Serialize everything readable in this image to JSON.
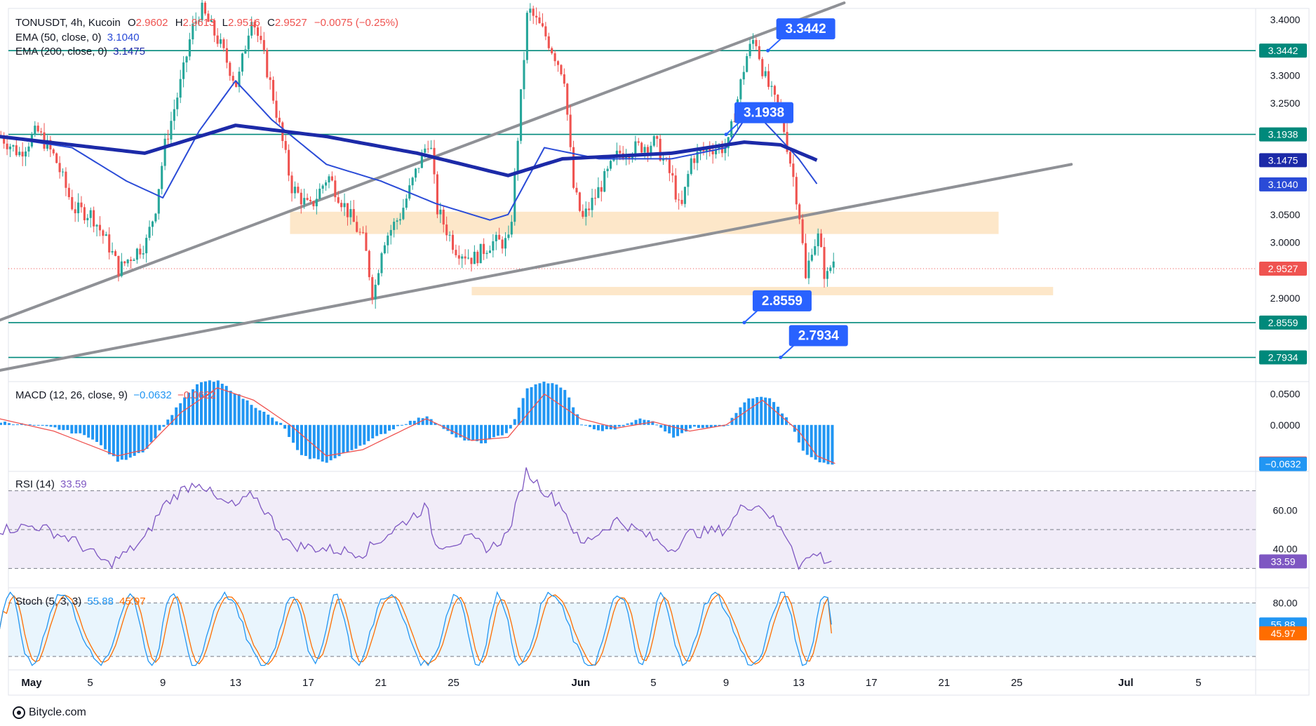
{
  "header": {
    "symbol_line": "TONUSDT, 4h, Kucoin",
    "ohlc": {
      "o_label": "O",
      "o": "2.9602",
      "h_label": "H",
      "h": "2.9613",
      "l_label": "L",
      "l": "2.9516",
      "c_label": "C",
      "c": "2.9527",
      "change": "−0.0075 (−0.25%)"
    },
    "ema50_label": "EMA (50, close, 0)",
    "ema50_value": "3.1040",
    "ema200_label": "EMA (200, close, 0)",
    "ema200_value": "3.1475"
  },
  "brand": "Bitycle.com",
  "colors": {
    "up": "#26a69a",
    "down": "#ef5350",
    "ema50": "#2a4bd7",
    "ema200": "#1c2aa8",
    "level": "#00897b",
    "callout": "#2962ff",
    "trend": "#8f9196",
    "zone": "#fde3c0",
    "macd_hist": "#2196f3",
    "signal": "#ef5350",
    "rsi": "#7e57c2",
    "stoch_k": "#2196f3",
    "stoch_d": "#ff6d00"
  },
  "chart_data": [
    {
      "type": "candlestick",
      "panel": "price",
      "title": "TONUSDT, 4h, Kucoin",
      "ylim": [
        2.75,
        3.42
      ],
      "yticks": [
        "3.4000",
        "3.3000",
        "3.2500",
        "3.0500",
        "3.0000",
        "2.9000"
      ],
      "x_ticks": [
        "May",
        "5",
        "9",
        "13",
        "17",
        "21",
        "25",
        "Jun",
        "5",
        "9",
        "13",
        "17",
        "21",
        "25",
        "Jul",
        "5"
      ],
      "x_tick_days": [
        1,
        5,
        9,
        13,
        17,
        21,
        25,
        32,
        36,
        40,
        44,
        48,
        52,
        56,
        62,
        66
      ],
      "last_price": 2.9527,
      "overlays": [
        {
          "name": "EMA (50, close, 0)",
          "value": "3.1040",
          "anchors": [
            [
              0,
              3.19
            ],
            [
              4,
              3.17
            ],
            [
              7,
              3.11
            ],
            [
              9,
              3.08
            ],
            [
              11,
              3.2
            ],
            [
              13,
              3.29
            ],
            [
              15,
              3.22
            ],
            [
              18,
              3.14
            ],
            [
              21,
              3.11
            ],
            [
              24,
              3.07
            ],
            [
              27,
              3.04
            ],
            [
              28,
              3.05
            ],
            [
              30,
              3.17
            ],
            [
              33,
              3.15
            ],
            [
              37,
              3.15
            ],
            [
              40,
              3.17
            ],
            [
              41,
              3.22
            ],
            [
              42,
              3.22
            ],
            [
              44,
              3.15
            ],
            [
              45,
              3.105
            ]
          ]
        },
        {
          "name": "EMA (200, close, 0)",
          "value": "3.1475",
          "anchors": [
            [
              0,
              3.19
            ],
            [
              8,
              3.16
            ],
            [
              13,
              3.21
            ],
            [
              18,
              3.19
            ],
            [
              23,
              3.16
            ],
            [
              28,
              3.12
            ],
            [
              31,
              3.15
            ],
            [
              37,
              3.16
            ],
            [
              41,
              3.18
            ],
            [
              43,
              3.175
            ],
            [
              45,
              3.1475
            ]
          ]
        }
      ],
      "levels": [
        {
          "label": "3.3442",
          "value": 3.3442
        },
        {
          "label": "3.1938",
          "value": 3.1938
        },
        {
          "label": "2.8559",
          "value": 2.8559
        },
        {
          "label": "2.7934",
          "value": 2.7934
        }
      ],
      "axis_labels": [
        {
          "text": "3.3442",
          "value": 3.3442,
          "color": "#00897b"
        },
        {
          "text": "3.1938",
          "value": 3.1938,
          "color": "#00897b"
        },
        {
          "text": "3.1475",
          "value": 3.1475,
          "color": "#1c2aa8"
        },
        {
          "text": "3.1040",
          "value": 3.104,
          "color": "#2a4bd7"
        },
        {
          "text": "2.9527",
          "value": 2.9527,
          "color": "#ef5350"
        },
        {
          "text": "2.8559",
          "value": 2.8559,
          "color": "#00897b"
        },
        {
          "text": "2.7934",
          "value": 2.7934,
          "color": "#00897b"
        }
      ],
      "trendlines": [
        {
          "from": [
            0,
            2.86
          ],
          "to": [
            46.5,
            3.43
          ]
        },
        {
          "from": [
            0,
            2.77
          ],
          "to": [
            59,
            3.14
          ]
        }
      ],
      "zones": [
        {
          "day_from": 16,
          "day_to": 55,
          "low": 3.015,
          "high": 3.055
        },
        {
          "day_from": 26,
          "day_to": 58,
          "low": 2.905,
          "high": 2.92
        }
      ],
      "candle_path": [
        [
          0,
          3.19
        ],
        [
          1,
          3.16
        ],
        [
          2,
          3.2
        ],
        [
          3,
          3.15
        ],
        [
          4,
          3.06
        ],
        [
          5,
          3.05
        ],
        [
          6,
          2.99
        ],
        [
          6.5,
          2.95
        ],
        [
          7,
          2.97
        ],
        [
          8,
          3.0
        ],
        [
          8.5,
          3.06
        ],
        [
          9,
          3.17
        ],
        [
          10,
          3.3
        ],
        [
          10.5,
          3.38
        ],
        [
          11,
          3.42
        ],
        [
          12,
          3.36
        ],
        [
          13,
          3.28
        ],
        [
          13.8,
          3.41
        ],
        [
          14.5,
          3.33
        ],
        [
          15,
          3.26
        ],
        [
          16,
          3.1
        ],
        [
          17,
          3.06
        ],
        [
          18,
          3.12
        ],
        [
          19,
          3.06
        ],
        [
          20,
          3.0
        ],
        [
          20.5,
          2.9
        ],
        [
          21,
          3.0
        ],
        [
          22,
          3.05
        ],
        [
          23,
          3.14
        ],
        [
          23.6,
          3.19
        ],
        [
          24,
          3.06
        ],
        [
          25,
          2.99
        ],
        [
          26,
          2.97
        ],
        [
          27,
          3.0
        ],
        [
          28,
          3.0
        ],
        [
          29,
          3.42
        ],
        [
          30,
          3.37
        ],
        [
          31,
          3.3
        ],
        [
          31.5,
          3.1
        ],
        [
          32,
          3.04
        ],
        [
          33,
          3.1
        ],
        [
          34,
          3.16
        ],
        [
          35,
          3.17
        ],
        [
          36,
          3.18
        ],
        [
          37,
          3.11
        ],
        [
          37.4,
          3.05
        ],
        [
          38,
          3.15
        ],
        [
          39,
          3.17
        ],
        [
          40,
          3.17
        ],
        [
          41,
          3.33
        ],
        [
          41.5,
          3.37
        ],
        [
          42,
          3.3
        ],
        [
          43,
          3.22
        ],
        [
          43.6,
          3.12
        ],
        [
          44,
          3.04
        ],
        [
          44.3,
          2.93
        ],
        [
          44.6,
          2.99
        ],
        [
          45,
          3.01
        ],
        [
          45.4,
          2.93
        ],
        [
          45.8,
          2.97
        ],
        [
          46,
          2.955
        ]
      ]
    },
    {
      "type": "histogram",
      "panel": "macd",
      "title": "MACD (12, 26, close, 9)",
      "values_shown": [
        "−0.0632",
        "−0.0622"
      ],
      "ylim": [
        -0.075,
        0.07
      ],
      "yticks": [
        "0.0500",
        "0.0000"
      ],
      "axis_labels": [
        {
          "text": "−0.0622",
          "value": -0.0622,
          "color": "#ef5350"
        },
        {
          "text": "−0.0632",
          "value": -0.0632,
          "color": "#2196f3"
        }
      ],
      "series": [
        {
          "name": "MACD",
          "anchors": [
            [
              0,
              0.005
            ],
            [
              3,
              -0.005
            ],
            [
              5,
              -0.02
            ],
            [
              6.5,
              -0.06
            ],
            [
              8,
              -0.04
            ],
            [
              10,
              0.04
            ],
            [
              11,
              0.07
            ],
            [
              12,
              0.07
            ],
            [
              14,
              0.03
            ],
            [
              15.5,
              0.0
            ],
            [
              16.5,
              -0.05
            ],
            [
              18,
              -0.06
            ],
            [
              20,
              -0.03
            ],
            [
              22,
              0.0
            ],
            [
              23.5,
              0.015
            ],
            [
              25,
              -0.02
            ],
            [
              26.5,
              -0.03
            ],
            [
              28,
              -0.01
            ],
            [
              29,
              0.06
            ],
            [
              30,
              0.07
            ],
            [
              31,
              0.06
            ],
            [
              32,
              0.0
            ],
            [
              33,
              -0.01
            ],
            [
              34,
              -0.005
            ],
            [
              35,
              0.01
            ],
            [
              36,
              0.005
            ],
            [
              37,
              -0.02
            ],
            [
              38,
              -0.005
            ],
            [
              40,
              0.0
            ],
            [
              41,
              0.04
            ],
            [
              41.8,
              0.045
            ],
            [
              42.5,
              0.04
            ],
            [
              43.5,
              0.0
            ],
            [
              44.2,
              -0.045
            ],
            [
              45,
              -0.06
            ],
            [
              46,
              -0.0632
            ]
          ]
        },
        {
          "name": "Signal",
          "anchors": [
            [
              0,
              0.01
            ],
            [
              3,
              -0.01
            ],
            [
              6.5,
              -0.05
            ],
            [
              8,
              -0.04
            ],
            [
              10,
              0.02
            ],
            [
              12,
              0.06
            ],
            [
              14,
              0.04
            ],
            [
              16,
              0.0
            ],
            [
              18,
              -0.05
            ],
            [
              20,
              -0.04
            ],
            [
              23.5,
              0.01
            ],
            [
              26,
              -0.025
            ],
            [
              28,
              -0.02
            ],
            [
              30,
              0.05
            ],
            [
              32,
              0.01
            ],
            [
              34,
              -0.005
            ],
            [
              36,
              0.005
            ],
            [
              38,
              -0.01
            ],
            [
              40,
              0.0
            ],
            [
              42,
              0.04
            ],
            [
              44,
              -0.01
            ],
            [
              45,
              -0.05
            ],
            [
              46,
              -0.0622
            ]
          ]
        }
      ]
    },
    {
      "type": "line",
      "panel": "rsi",
      "title": "RSI (14)",
      "value": "33.59",
      "ylim": [
        20,
        80
      ],
      "yticks": [
        "60.00",
        "40.00"
      ],
      "bands": [
        30,
        50,
        70
      ],
      "axis_labels": [
        {
          "text": "33.59",
          "value": 33.59,
          "color": "#7e57c2"
        }
      ],
      "series": [
        {
          "name": "RSI",
          "anchors": [
            [
              0,
              50
            ],
            [
              2,
              52
            ],
            [
              4,
              45
            ],
            [
              6,
              32
            ],
            [
              7,
              38
            ],
            [
              8,
              45
            ],
            [
              9,
              62
            ],
            [
              10,
              70
            ],
            [
              11,
              75
            ],
            [
              12,
              65
            ],
            [
              13,
              62
            ],
            [
              14,
              68
            ],
            [
              15,
              55
            ],
            [
              16,
              42
            ],
            [
              18,
              40
            ],
            [
              20,
              38
            ],
            [
              22,
              52
            ],
            [
              23.5,
              62
            ],
            [
              24,
              42
            ],
            [
              26,
              45
            ],
            [
              27,
              40
            ],
            [
              28,
              48
            ],
            [
              29,
              80
            ],
            [
              30,
              70
            ],
            [
              31,
              62
            ],
            [
              32,
              42
            ],
            [
              34,
              55
            ],
            [
              35,
              50
            ],
            [
              37,
              40
            ],
            [
              38,
              48
            ],
            [
              40,
              50
            ],
            [
              41,
              63
            ],
            [
              42,
              62
            ],
            [
              43,
              50
            ],
            [
              43.5,
              45
            ],
            [
              44,
              32
            ],
            [
              44.5,
              35
            ],
            [
              45,
              38
            ],
            [
              45.5,
              34
            ],
            [
              46,
              33.59
            ]
          ]
        }
      ]
    },
    {
      "type": "line",
      "panel": "stoch",
      "title": "Stoch (5, 3, 3)",
      "values_shown": [
        "55.88",
        "45.97"
      ],
      "ylim": [
        5,
        97
      ],
      "yticks": [
        "80.00"
      ],
      "bands": [
        20,
        80
      ],
      "axis_labels": [
        {
          "text": "55.88",
          "value": 55.88,
          "color": "#2196f3"
        },
        {
          "text": "45.97",
          "value": 45.97,
          "color": "#ff6d00"
        }
      ],
      "series": [
        {
          "name": "%K",
          "final": "55.88"
        },
        {
          "name": "%D",
          "final": "45.97"
        }
      ]
    }
  ]
}
